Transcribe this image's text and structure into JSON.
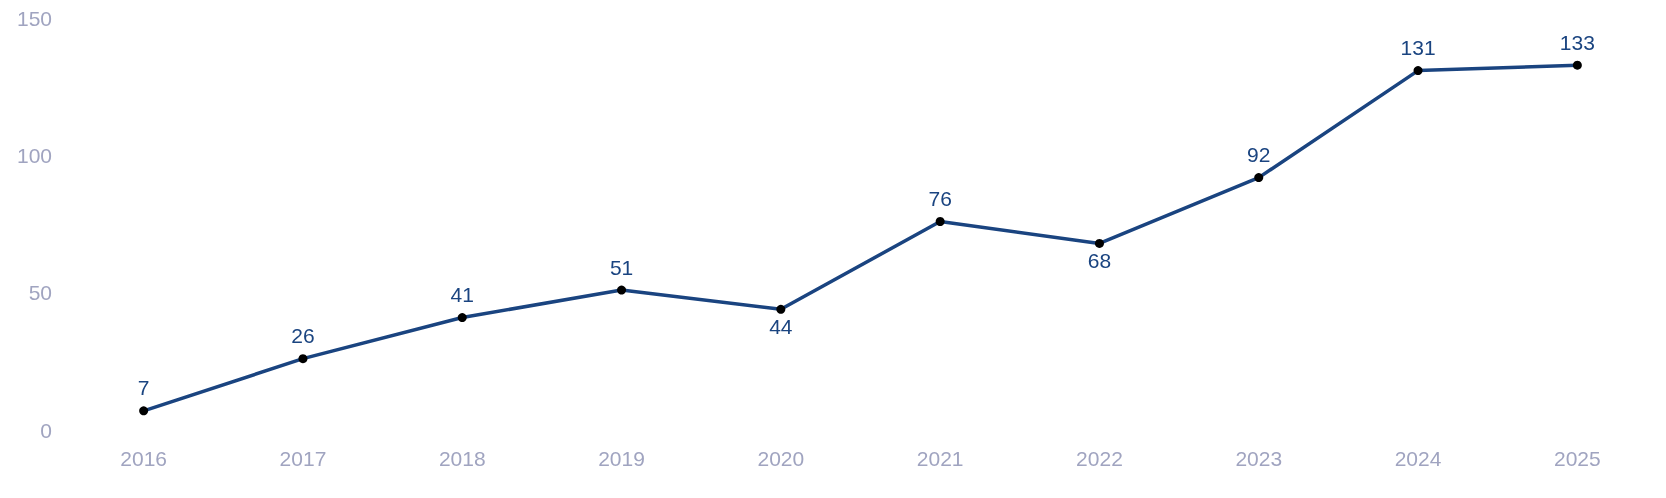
{
  "chart_data": {
    "type": "line",
    "categories": [
      "2016",
      "2017",
      "2018",
      "2019",
      "2020",
      "2021",
      "2022",
      "2023",
      "2024",
      "2025"
    ],
    "series": [
      {
        "color": "#1a4480",
        "values": [
          7,
          26,
          41,
          51,
          44,
          76,
          68,
          92,
          131,
          133
        ]
      }
    ],
    "ylim": [
      0,
      150
    ],
    "yticks": [
      0,
      50,
      100,
      150
    ],
    "grid": false,
    "marker": "circle",
    "line_style": "solid",
    "data_labels": true
  }
}
